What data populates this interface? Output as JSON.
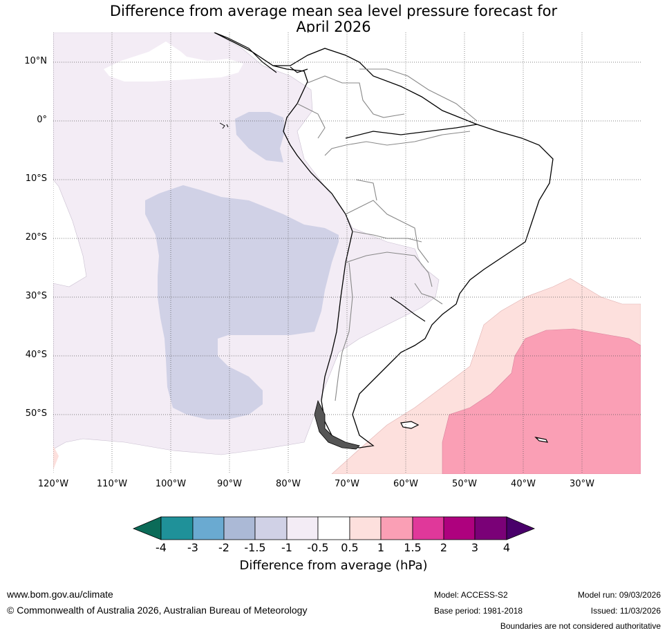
{
  "title_line1": "Difference from average mean sea level pressure forecast for",
  "title_line2": "April 2026",
  "lat_labels": [
    "10°N",
    "0°",
    "10°S",
    "20°S",
    "30°S",
    "40°S",
    "50°S"
  ],
  "lon_labels": [
    "120°W",
    "110°W",
    "100°W",
    "90°W",
    "80°W",
    "70°W",
    "60°W",
    "50°W",
    "40°W",
    "30°W"
  ],
  "colorbar": {
    "title": "Difference from average (hPa)",
    "tick_labels": [
      "-4",
      "-3",
      "-2",
      "-1.5",
      "-1",
      "-0.5",
      "0.5",
      "1",
      "1.5",
      "2",
      "3",
      "4"
    ],
    "colors": {
      "below_-4": "#0b6b58",
      "-4_to_-3": "#1f9199",
      "-3_to_-2": "#6aaad1",
      "-2_to_-1.5": "#abb9d6",
      "-1.5_to_-1": "#d0d1e6",
      "-1_to_-0.5": "#f3ecf5",
      "-0.5_to_0.5": "#ffffff",
      "0.5_to_1": "#fde0dd",
      "1_to_1.5": "#fa9fb5",
      "1.5_to_2": "#e0389a",
      "2_to_3": "#ae017e",
      "3_to_4": "#7a0177",
      "above_4": "#49006a"
    }
  },
  "footer": {
    "website": "www.bom.gov.au/climate",
    "copyright": "© Commonwealth of Australia 2026, Australian Bureau of Meteorology",
    "model": "Model: ACCESS-S2",
    "base_period": "Base period: 1981-2018",
    "model_run": "Model run: 09/03/2026",
    "issued": "Issued: 11/03/2026",
    "disclaimer": "Boundaries are not considered authoritative"
  }
}
